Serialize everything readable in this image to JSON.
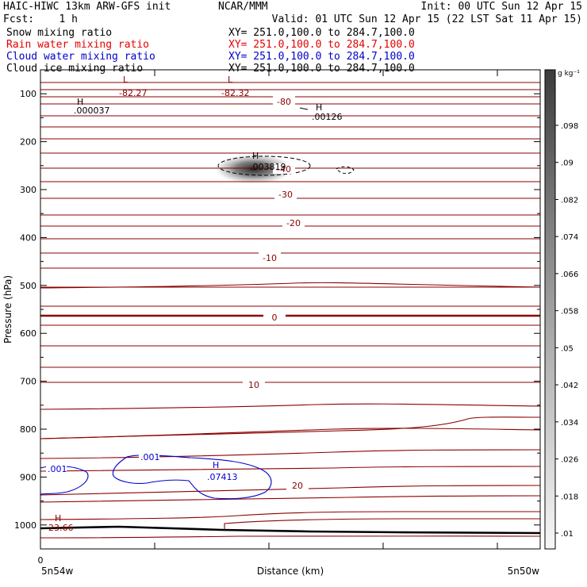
{
  "header": {
    "line1_left": "HAIC-HIWC 13km ARW-GFS init",
    "line1_mid": "NCAR/MMM",
    "line1_right": "Init: 00 UTC Sun 12 Apr 15",
    "line2_left": "Fcst:    1 h",
    "line2_right": "Valid: 01 UTC Sun 12 Apr 15 (22 LST Sat 11 Apr 15)"
  },
  "fields": [
    {
      "name": "Snow mixing ratio",
      "xy": "XY= 251.0,100.0 to 284.7,100.0",
      "color": "#000000"
    },
    {
      "name": "Rain water mixing ratio",
      "xy": "XY= 251.0,100.0 to 284.7,100.0",
      "color": "#e60000"
    },
    {
      "name": "Cloud water mixing ratio",
      "xy": "XY= 251.0,100.0 to 284.7,100.0",
      "color": "#0000cc"
    },
    {
      "name": "Cloud ice mixing ratio",
      "xy": "XY= 251.0,100.0 to 284.7,100.0",
      "color": "#000000"
    }
  ],
  "colors": {
    "temperature": "#8b0000",
    "cloud_water": "#0000cc",
    "ice": "#000000",
    "freezing": "#8b0000"
  },
  "chart_data": {
    "type": "contour",
    "xlabel": "Distance (km)",
    "ylabel": "Pressure (hPa)",
    "x_start_label": "5n54w",
    "x_end_label": "5n50w",
    "x_origin_label": "0",
    "ylim": [
      1050,
      50
    ],
    "yticks": [
      100,
      200,
      300,
      400,
      500,
      600,
      700,
      800,
      900,
      1000
    ],
    "temperature_labels": [
      {
        "text": "-80",
        "p": 140
      },
      {
        "text": "-40",
        "p": 255
      },
      {
        "text": "-30",
        "p": 295
      },
      {
        "text": "-20",
        "p": 340
      },
      {
        "text": "-10",
        "p": 430
      },
      {
        "text": "0",
        "p": 565
      },
      {
        "text": "10",
        "p": 700
      },
      {
        "text": "20",
        "p": 922
      }
    ],
    "extrema": [
      {
        "kind": "L",
        "value": "-82.27"
      },
      {
        "kind": "L",
        "value": "-82.32"
      },
      {
        "kind": "H",
        "value": ".000037"
      },
      {
        "kind": "H",
        "value": ".00126"
      },
      {
        "kind": "H",
        "value": ".003819"
      },
      {
        "kind": "H",
        "value": ".07413"
      },
      {
        "kind": "H",
        "value": "23.66"
      }
    ],
    "cloud_water_labels": [
      ".001",
      ".001"
    ],
    "colorbar": {
      "unit": "g kg⁻¹",
      "ticks": [
        ".098",
        ".09",
        ".082",
        ".074",
        ".066",
        ".058",
        ".05",
        ".042",
        ".034",
        ".026",
        ".018",
        ".01"
      ]
    }
  }
}
